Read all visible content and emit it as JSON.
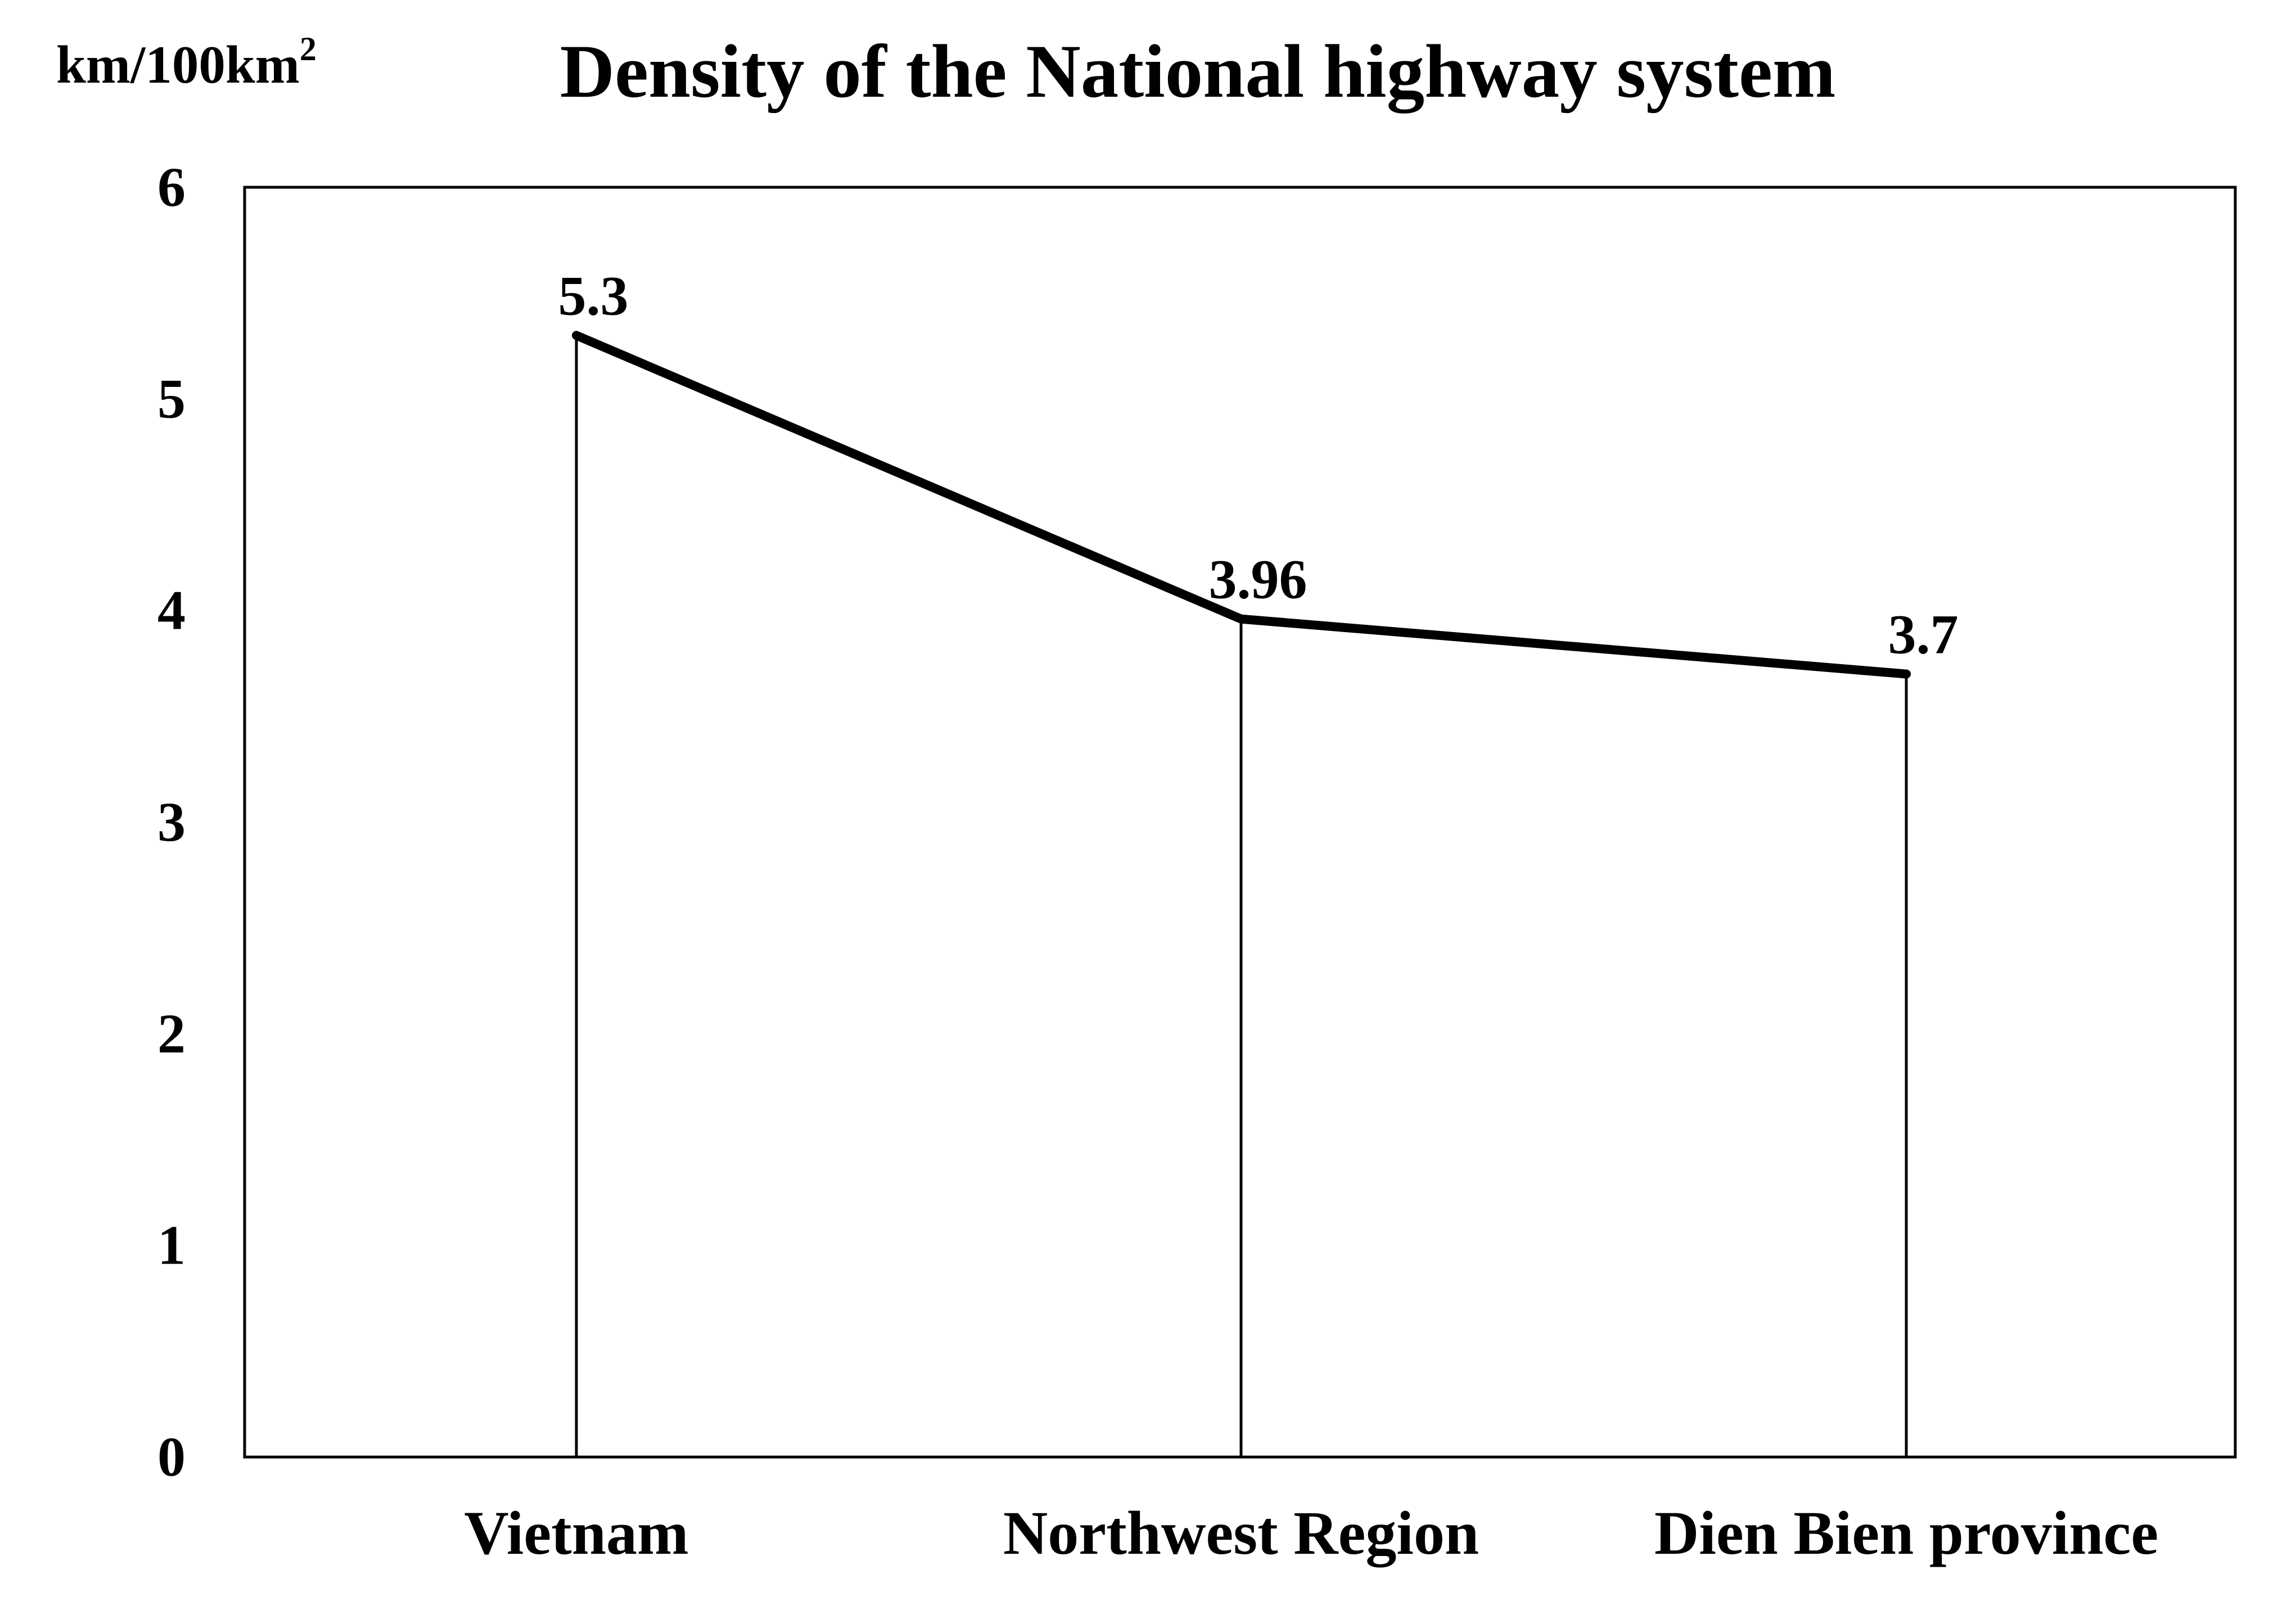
{
  "chart_data": {
    "type": "line",
    "title": "Density of the National highway system",
    "ylabel": "km/100km",
    "ylabel_superscript": "2",
    "xlabel": "",
    "categories": [
      "Vietnam",
      "Northwest Region",
      "Dien Bien province"
    ],
    "series": [
      {
        "values": [
          5.3,
          3.96,
          3.7
        ],
        "data_labels": [
          "5.3",
          "3.96",
          "3.7"
        ]
      }
    ],
    "ylim": [
      0,
      6
    ],
    "yticks": [
      0,
      1,
      2,
      3,
      4,
      5,
      6
    ],
    "ytick_labels": [
      "0",
      "1",
      "2",
      "3",
      "4",
      "5",
      "6"
    ],
    "drop_lines": true,
    "grid": false,
    "legend": "none",
    "line_color": "#000000",
    "background": "#ffffff"
  }
}
